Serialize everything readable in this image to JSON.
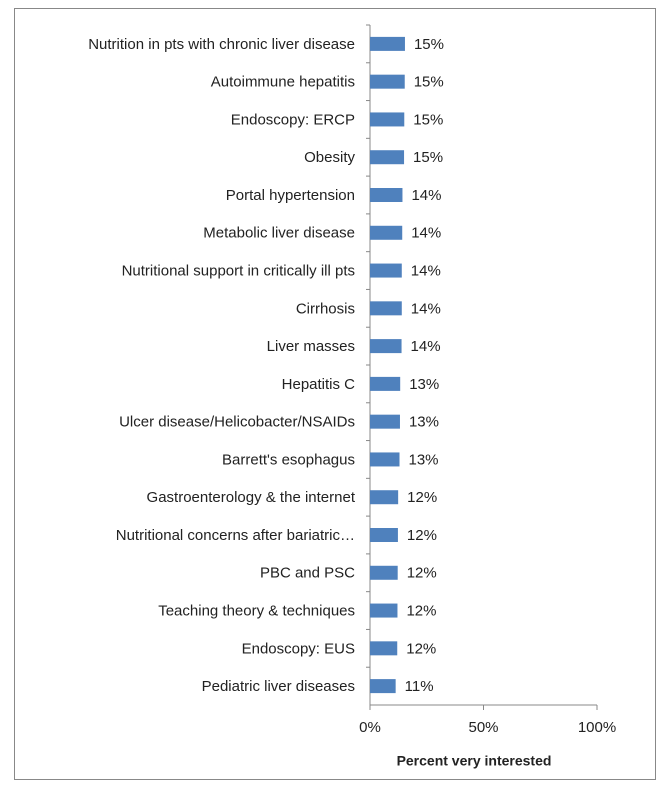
{
  "chart_data": {
    "type": "barh",
    "x_label": "Percent very interested",
    "categories": [
      "Nutrition in pts with chronic liver disease",
      "Autoimmune hepatitis",
      "Endoscopy: ERCP",
      "Obesity",
      "Portal hypertension",
      "Metabolic liver disease",
      "Nutritional support in critically ill pts",
      "Cirrhosis",
      "Liver masses",
      "Hepatitis C",
      "Ulcer disease/Helicobacter/NSAIDs",
      "Barrett's esophagus",
      "Gastroenterology & the internet",
      "Nutritional concerns after bariatric…",
      "PBC and PSC",
      "Teaching theory & techniques",
      "Endoscopy: EUS",
      "Pediatric liver diseases"
    ],
    "values": [
      15.4,
      15.3,
      15.1,
      15.0,
      14.3,
      14.2,
      14.0,
      14.0,
      13.9,
      13.3,
      13.2,
      13.0,
      12.4,
      12.3,
      12.2,
      12.1,
      12.0,
      11.3
    ],
    "value_labels": [
      "15%",
      "15%",
      "15%",
      "15%",
      "14%",
      "14%",
      "14%",
      "14%",
      "14%",
      "13%",
      "13%",
      "13%",
      "12%",
      "12%",
      "12%",
      "12%",
      "12%",
      "11%"
    ],
    "color": "#4f81bd",
    "xlim": [
      0,
      100
    ],
    "xticks": [
      {
        "value": 0,
        "label": "0%"
      },
      {
        "value": 50,
        "label": "50%"
      },
      {
        "value": 100,
        "label": "100%"
      }
    ]
  }
}
